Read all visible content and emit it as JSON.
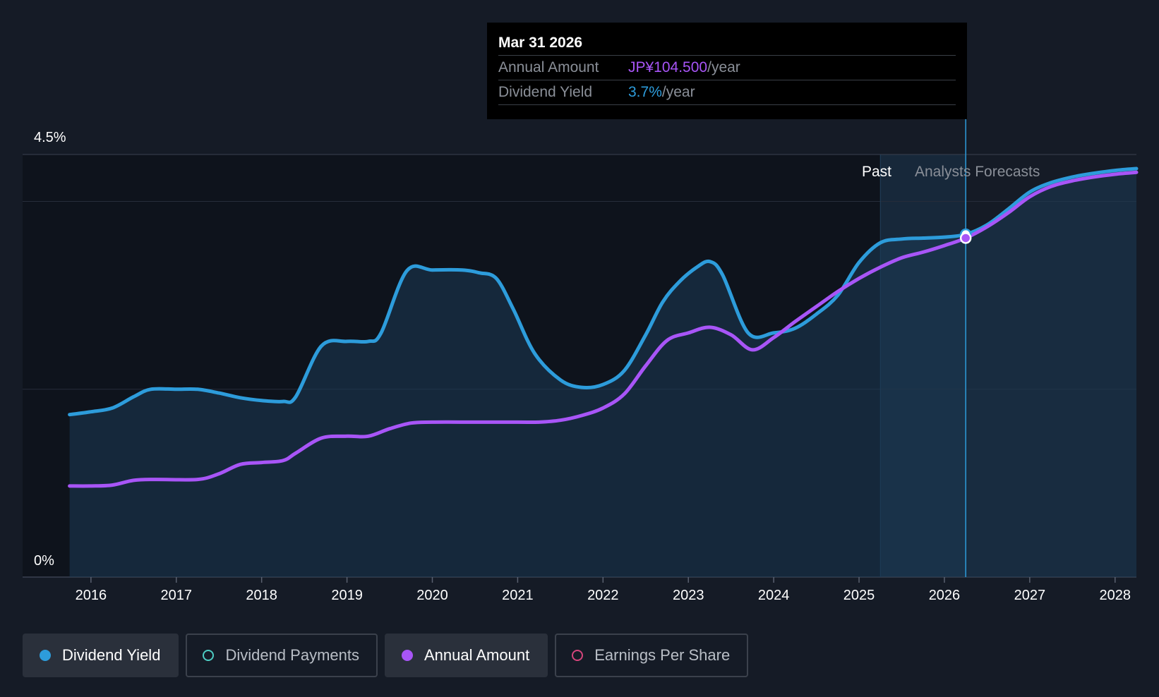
{
  "tooltip": {
    "date": "Mar 31 2026",
    "rows": [
      {
        "label": "Annual Amount",
        "value": "JP¥104.500",
        "suffix": "/year"
      },
      {
        "label": "Dividend Yield",
        "value": "3.7%",
        "suffix": "/year"
      }
    ]
  },
  "regions": {
    "past": "Past",
    "forecast": "Analysts Forecasts"
  },
  "legend": [
    {
      "label": "Dividend Yield",
      "color": "#2d9cdb",
      "filled": true,
      "active": true
    },
    {
      "label": "Dividend Payments",
      "color": "#4ecdc4",
      "filled": false,
      "active": false
    },
    {
      "label": "Annual Amount",
      "color": "#a855f7",
      "filled": true,
      "active": true
    },
    {
      "label": "Earnings Per Share",
      "color": "#d6457c",
      "filled": false,
      "active": false
    }
  ],
  "chart_data": {
    "type": "line",
    "y_tick_labels": [
      "4.5%",
      "0%"
    ],
    "ylim": [
      0,
      4.5
    ],
    "xlim": [
      2015.72,
      2028.25
    ],
    "x_ticks": [
      "2016",
      "2017",
      "2018",
      "2019",
      "2020",
      "2021",
      "2022",
      "2023",
      "2024",
      "2025",
      "2026",
      "2027",
      "2028"
    ],
    "past_forecast_boundary": 2025.25,
    "highlight_date": 2026.25,
    "grid": true,
    "series": [
      {
        "name": "Dividend Yield",
        "color": "#2d9cdb",
        "points": [
          [
            2015.75,
            1.73
          ],
          [
            2016.0,
            1.76
          ],
          [
            2016.25,
            1.8
          ],
          [
            2016.5,
            1.92
          ],
          [
            2016.7,
            2.0
          ],
          [
            2017.0,
            2.0
          ],
          [
            2017.25,
            2.0
          ],
          [
            2017.5,
            1.96
          ],
          [
            2017.75,
            1.91
          ],
          [
            2018.0,
            1.88
          ],
          [
            2018.25,
            1.87
          ],
          [
            2018.4,
            1.92
          ],
          [
            2018.7,
            2.46
          ],
          [
            2019.0,
            2.51
          ],
          [
            2019.25,
            2.51
          ],
          [
            2019.4,
            2.6
          ],
          [
            2019.7,
            3.26
          ],
          [
            2020.0,
            3.27
          ],
          [
            2020.35,
            3.27
          ],
          [
            2020.55,
            3.24
          ],
          [
            2020.75,
            3.18
          ],
          [
            2020.95,
            2.85
          ],
          [
            2021.2,
            2.38
          ],
          [
            2021.5,
            2.1
          ],
          [
            2021.75,
            2.02
          ],
          [
            2022.0,
            2.05
          ],
          [
            2022.25,
            2.2
          ],
          [
            2022.5,
            2.58
          ],
          [
            2022.7,
            2.93
          ],
          [
            2022.9,
            3.15
          ],
          [
            2023.1,
            3.3
          ],
          [
            2023.25,
            3.36
          ],
          [
            2023.4,
            3.22
          ],
          [
            2023.7,
            2.6
          ],
          [
            2024.0,
            2.6
          ],
          [
            2024.25,
            2.65
          ],
          [
            2024.5,
            2.8
          ],
          [
            2024.75,
            3.0
          ],
          [
            2025.0,
            3.35
          ],
          [
            2025.25,
            3.56
          ],
          [
            2025.5,
            3.6
          ],
          [
            2025.75,
            3.61
          ],
          [
            2026.0,
            3.62
          ],
          [
            2026.25,
            3.65
          ],
          [
            2026.5,
            3.75
          ],
          [
            2026.75,
            3.92
          ],
          [
            2027.0,
            4.1
          ],
          [
            2027.25,
            4.2
          ],
          [
            2027.5,
            4.26
          ],
          [
            2027.75,
            4.3
          ],
          [
            2028.0,
            4.33
          ],
          [
            2028.25,
            4.35
          ]
        ]
      },
      {
        "name": "Annual Amount",
        "color": "#a855f7",
        "points": [
          [
            2015.75,
            0.97
          ],
          [
            2016.0,
            0.97
          ],
          [
            2016.25,
            0.98
          ],
          [
            2016.5,
            1.03
          ],
          [
            2016.75,
            1.04
          ],
          [
            2017.25,
            1.04
          ],
          [
            2017.5,
            1.1
          ],
          [
            2017.75,
            1.2
          ],
          [
            2018.0,
            1.22
          ],
          [
            2018.25,
            1.24
          ],
          [
            2018.4,
            1.32
          ],
          [
            2018.7,
            1.48
          ],
          [
            2019.0,
            1.5
          ],
          [
            2019.25,
            1.5
          ],
          [
            2019.5,
            1.58
          ],
          [
            2019.75,
            1.64
          ],
          [
            2020.0,
            1.65
          ],
          [
            2020.5,
            1.65
          ],
          [
            2021.0,
            1.65
          ],
          [
            2021.25,
            1.65
          ],
          [
            2021.5,
            1.67
          ],
          [
            2021.75,
            1.72
          ],
          [
            2022.0,
            1.8
          ],
          [
            2022.25,
            1.95
          ],
          [
            2022.5,
            2.25
          ],
          [
            2022.75,
            2.52
          ],
          [
            2023.0,
            2.6
          ],
          [
            2023.25,
            2.66
          ],
          [
            2023.5,
            2.58
          ],
          [
            2023.75,
            2.42
          ],
          [
            2024.0,
            2.55
          ],
          [
            2024.25,
            2.72
          ],
          [
            2024.5,
            2.88
          ],
          [
            2024.75,
            3.04
          ],
          [
            2025.0,
            3.18
          ],
          [
            2025.25,
            3.3
          ],
          [
            2025.5,
            3.4
          ],
          [
            2025.75,
            3.46
          ],
          [
            2026.0,
            3.53
          ],
          [
            2026.25,
            3.61
          ],
          [
            2026.5,
            3.73
          ],
          [
            2026.75,
            3.88
          ],
          [
            2027.0,
            4.05
          ],
          [
            2027.25,
            4.16
          ],
          [
            2027.5,
            4.22
          ],
          [
            2027.75,
            4.26
          ],
          [
            2028.0,
            4.29
          ],
          [
            2028.25,
            4.31
          ]
        ]
      }
    ]
  }
}
